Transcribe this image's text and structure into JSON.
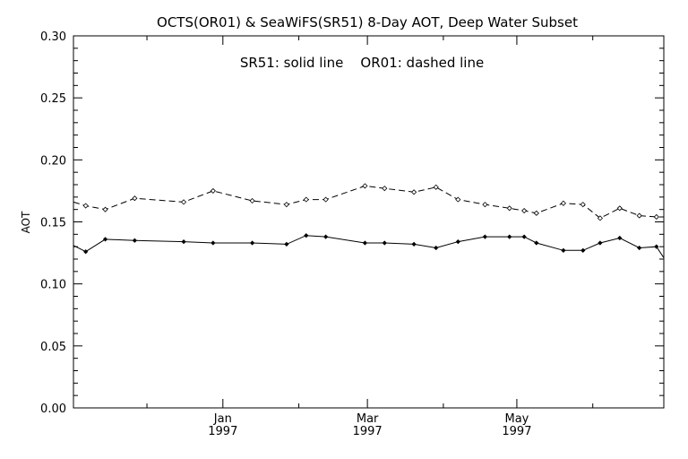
{
  "chart_data": {
    "type": "line",
    "title": "OCTS(OR01) & SeaWiFS(SR51) 8-Day AOT, Deep Water Subset",
    "annotation": "SR51: solid line    OR01: dashed line",
    "ylabel": "AOT",
    "xlabel": "",
    "ylim": [
      0.0,
      0.3
    ],
    "yticks": [
      "0.00",
      "0.05",
      "0.10",
      "0.15",
      "0.20",
      "0.25",
      "0.30"
    ],
    "xlim": [
      "1996-11-01",
      "1997-06-30"
    ],
    "xticks": [
      {
        "date": "1997-01-01",
        "label": "Jan",
        "year": "1997"
      },
      {
        "date": "1997-03-01",
        "label": "Mar",
        "year": "1997"
      },
      {
        "date": "1997-05-01",
        "label": "May",
        "year": "1997"
      }
    ],
    "grid": false,
    "series": [
      {
        "name": "SR51",
        "style": "solid",
        "x": [
          "1996-11-01",
          "1996-11-06",
          "1996-11-14",
          "1996-11-26",
          "1996-12-16",
          "1996-12-28",
          "1997-01-13",
          "1997-01-27",
          "1997-02-04",
          "1997-02-12",
          "1997-02-28",
          "1997-03-08",
          "1997-03-20",
          "1997-03-29",
          "1997-04-07",
          "1997-04-18",
          "1997-04-28",
          "1997-05-04",
          "1997-05-09",
          "1997-05-20",
          "1997-05-28",
          "1997-06-04",
          "1997-06-12",
          "1997-06-20",
          "1997-06-27",
          "1997-06-30"
        ],
        "values": [
          0.131,
          0.126,
          0.136,
          0.135,
          0.134,
          0.133,
          0.133,
          0.132,
          0.139,
          0.138,
          0.133,
          0.133,
          0.132,
          0.129,
          0.134,
          0.138,
          0.138,
          0.138,
          0.133,
          0.127,
          0.127,
          0.133,
          0.137,
          0.129,
          0.13,
          0.121
        ]
      },
      {
        "name": "OR01",
        "style": "dashed",
        "x": [
          "1996-11-01",
          "1996-11-06",
          "1996-11-14",
          "1996-11-26",
          "1996-12-16",
          "1996-12-28",
          "1997-01-13",
          "1997-01-27",
          "1997-02-04",
          "1997-02-12",
          "1997-02-28",
          "1997-03-08",
          "1997-03-20",
          "1997-03-29",
          "1997-04-07",
          "1997-04-18",
          "1997-04-28",
          "1997-05-04",
          "1997-05-09",
          "1997-05-20",
          "1997-05-28",
          "1997-06-04",
          "1997-06-12",
          "1997-06-20",
          "1997-06-27",
          "1997-06-30"
        ],
        "values": [
          0.166,
          0.163,
          0.16,
          0.169,
          0.166,
          0.175,
          0.167,
          0.164,
          0.168,
          0.168,
          0.179,
          0.177,
          0.174,
          0.178,
          0.168,
          0.164,
          0.161,
          0.159,
          0.157,
          0.165,
          0.164,
          0.153,
          0.161,
          0.155,
          0.154,
          0.154
        ]
      }
    ]
  }
}
